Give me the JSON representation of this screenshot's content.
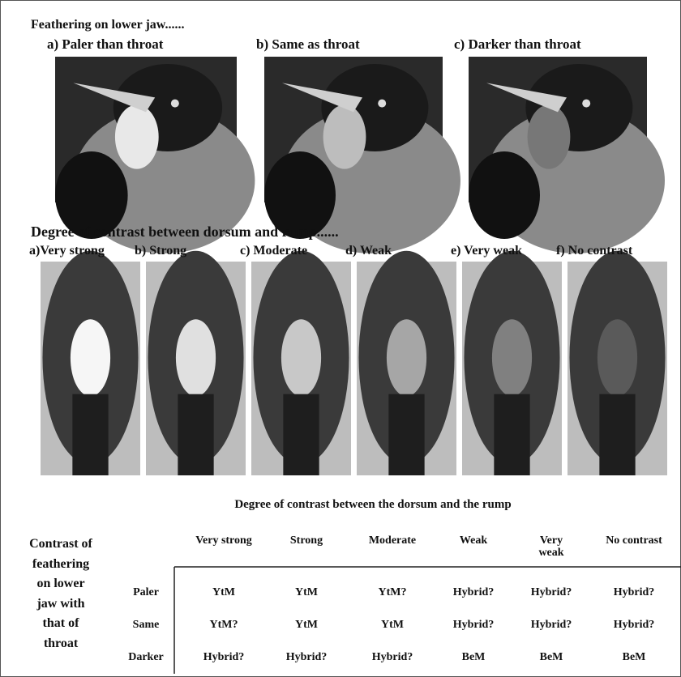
{
  "section1": {
    "title": "Feathering on lower jaw......",
    "labels": [
      "a) Paler than throat",
      "b) Same as throat",
      "c)  Darker than throat"
    ]
  },
  "section2": {
    "title": "Degree of contrast between dorsum and rump......",
    "labels": [
      "a)Very strong",
      "b) Strong",
      "c) Moderate",
      "d) Weak",
      "e) Very weak",
      "f) No contrast"
    ]
  },
  "table": {
    "title": "Degree of contrast between the dorsum and the rump",
    "row_header": [
      "Contrast of",
      "feathering",
      "on lower",
      "jaw with",
      "that of",
      "throat"
    ],
    "columns": [
      "Very strong",
      "Strong",
      "Moderate",
      "Weak",
      "Very weak",
      "No contrast"
    ],
    "row_labels": [
      "Paler",
      "Same",
      "Darker"
    ],
    "rows": [
      [
        "YtM",
        "YtM",
        "YtM?",
        "Hybrid?",
        "Hybrid?",
        "Hybrid?"
      ],
      [
        "YtM?",
        "YtM",
        "YtM",
        "Hybrid?",
        "Hybrid?",
        "Hybrid?"
      ],
      [
        "Hybrid?",
        "Hybrid?",
        "Hybrid?",
        "BeM",
        "BeM",
        "BeM"
      ]
    ]
  }
}
